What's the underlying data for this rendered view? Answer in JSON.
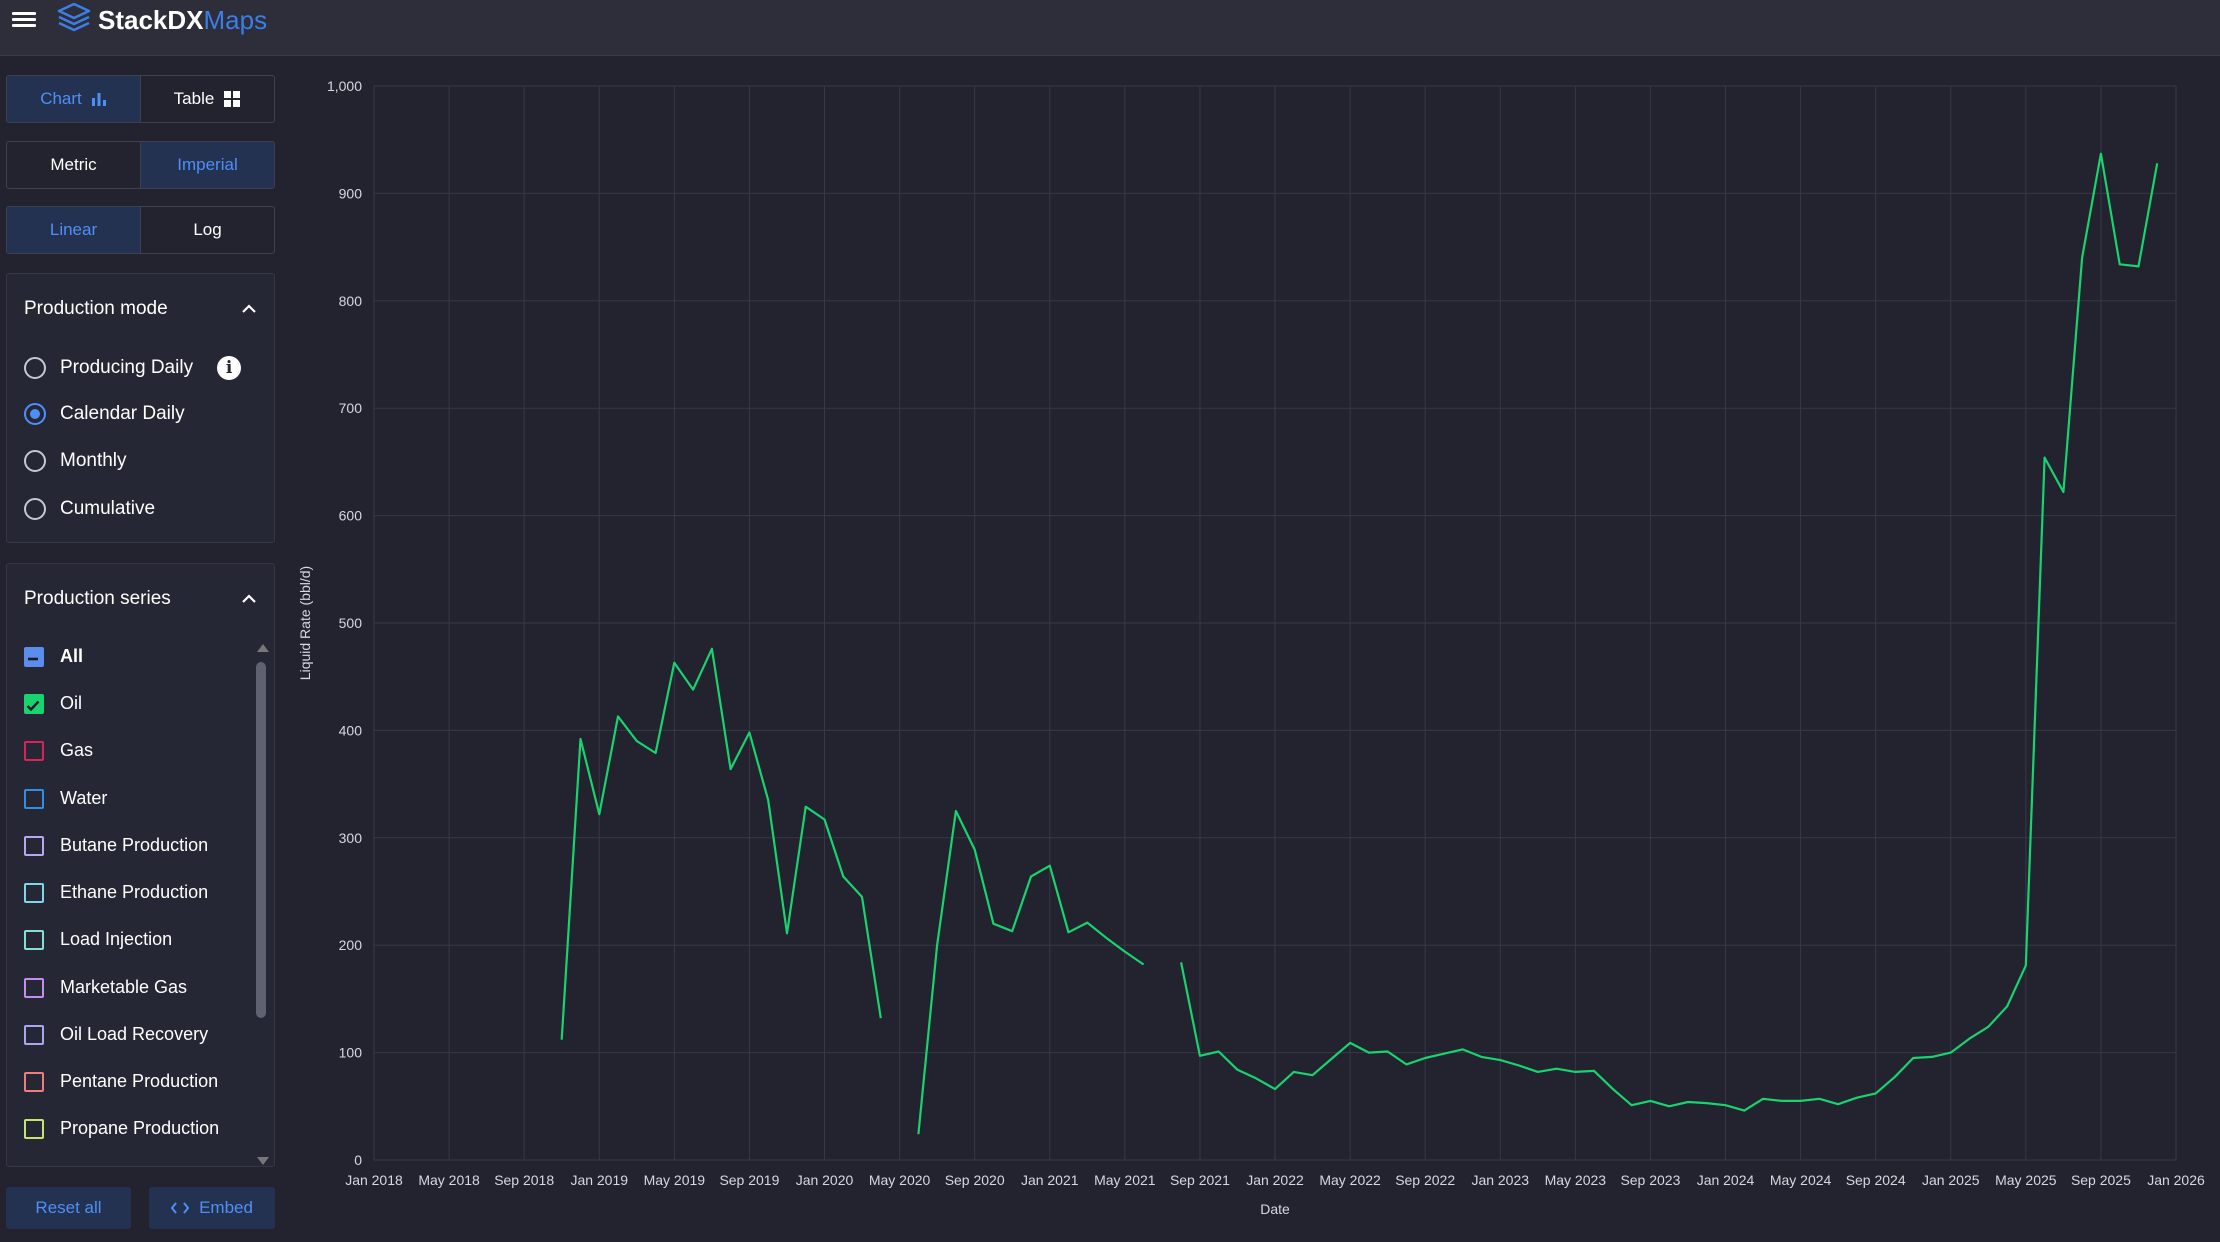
{
  "header": {
    "brand_main": "StackDX",
    "brand_sub": "Maps"
  },
  "view_toggle": {
    "chart_label": "Chart",
    "table_label": "Table",
    "selected": "Chart"
  },
  "unit_toggle": {
    "metric_label": "Metric",
    "imperial_label": "Imperial",
    "selected": "Imperial"
  },
  "scale_toggle": {
    "linear_label": "Linear",
    "log_label": "Log",
    "selected": "Linear"
  },
  "production_mode": {
    "title": "Production mode",
    "options": [
      {
        "label": "Producing Daily",
        "checked": false
      },
      {
        "label": "Calendar Daily",
        "checked": true
      },
      {
        "label": "Monthly",
        "checked": false
      },
      {
        "label": "Cumulative",
        "checked": false
      }
    ]
  },
  "production_series": {
    "title": "Production series",
    "items": [
      {
        "label": "All",
        "state": "indeterminate",
        "color": "#5b8def"
      },
      {
        "label": "Oil",
        "state": "checked",
        "color": "#18d36f"
      },
      {
        "label": "Gas",
        "state": "unchecked",
        "color": "#d8245a"
      },
      {
        "label": "Water",
        "state": "unchecked",
        "color": "#2f8fe0"
      },
      {
        "label": "Butane Production",
        "state": "unchecked",
        "color": "#b4a8f2"
      },
      {
        "label": "Ethane Production",
        "state": "unchecked",
        "color": "#7dd7e8"
      },
      {
        "label": "Load Injection",
        "state": "unchecked",
        "color": "#84e0d6"
      },
      {
        "label": "Marketable Gas",
        "state": "unchecked",
        "color": "#c48ef0"
      },
      {
        "label": "Oil Load Recovery",
        "state": "unchecked",
        "color": "#a8a8f0"
      },
      {
        "label": "Pentane Production",
        "state": "unchecked",
        "color": "#f07c7c"
      },
      {
        "label": "Propane Production",
        "state": "unchecked",
        "color": "#c4e66e"
      }
    ]
  },
  "footer": {
    "reset_label": "Reset all",
    "embed_label": "Embed"
  },
  "chart_data": {
    "type": "line",
    "title": "",
    "xlabel": "Date",
    "ylabel": "Liquid Rate (bbl/d)",
    "ylim": [
      0,
      1000
    ],
    "xlim": [
      "2018-01",
      "2026-01"
    ],
    "yticks": [
      "0",
      "100",
      "200",
      "300",
      "400",
      "500",
      "600",
      "700",
      "800",
      "900",
      "1,000"
    ],
    "xticks": [
      "Jan 2018",
      "May 2018",
      "Sep 2018",
      "Jan 2019",
      "May 2019",
      "Sep 2019",
      "Jan 2020",
      "May 2020",
      "Sep 2020",
      "Jan 2021",
      "May 2021",
      "Sep 2021",
      "Jan 2022",
      "May 2022",
      "Sep 2022",
      "Jan 2023",
      "May 2023",
      "Sep 2023",
      "Jan 2024",
      "May 2024",
      "Sep 2024",
      "Jan 2025",
      "May 2025",
      "Sep 2025",
      "Jan 2026"
    ],
    "grid": true,
    "series": [
      {
        "name": "Oil",
        "color": "#18d36f",
        "points": [
          [
            "2018-11",
            112
          ],
          [
            "2018-12",
            392
          ],
          [
            "2019-01",
            322
          ],
          [
            "2019-02",
            413
          ],
          [
            "2019-03",
            390
          ],
          [
            "2019-04",
            379
          ],
          [
            "2019-05",
            463
          ],
          [
            "2019-06",
            438
          ],
          [
            "2019-07",
            476
          ],
          [
            "2019-08",
            364
          ],
          [
            "2019-09",
            398
          ],
          [
            "2019-10",
            335
          ],
          [
            "2019-11",
            211
          ],
          [
            "2019-12",
            329
          ],
          [
            "2020-01",
            317
          ],
          [
            "2020-02",
            264
          ],
          [
            "2020-03",
            245
          ],
          [
            "2020-04",
            132
          ],
          null,
          [
            "2020-06",
            24
          ],
          [
            "2020-07",
            200
          ],
          [
            "2020-08",
            325
          ],
          [
            "2020-09",
            289
          ],
          [
            "2020-10",
            220
          ],
          [
            "2020-11",
            213
          ],
          [
            "2020-12",
            264
          ],
          [
            "2021-01",
            274
          ],
          [
            "2021-02",
            212
          ],
          [
            "2021-03",
            221
          ],
          [
            "2021-04",
            207
          ],
          [
            "2021-05",
            194
          ],
          [
            "2021-06",
            182
          ],
          null,
          [
            "2021-08",
            184
          ],
          [
            "2021-09",
            97
          ],
          [
            "2021-10",
            101
          ],
          [
            "2021-11",
            84
          ],
          [
            "2021-12",
            76
          ],
          [
            "2022-01",
            66
          ],
          [
            "2022-02",
            82
          ],
          [
            "2022-03",
            79
          ],
          [
            "2022-04",
            94
          ],
          [
            "2022-05",
            109
          ],
          [
            "2022-06",
            100
          ],
          [
            "2022-07",
            101
          ],
          [
            "2022-08",
            89
          ],
          [
            "2022-09",
            95
          ],
          [
            "2022-10",
            99
          ],
          [
            "2022-11",
            103
          ],
          [
            "2022-12",
            96
          ],
          [
            "2023-01",
            93
          ],
          [
            "2023-02",
            88
          ],
          [
            "2023-03",
            82
          ],
          [
            "2023-04",
            85
          ],
          [
            "2023-05",
            82
          ],
          [
            "2023-06",
            83
          ],
          [
            "2023-07",
            66
          ],
          [
            "2023-08",
            51
          ],
          [
            "2023-09",
            55
          ],
          [
            "2023-10",
            50
          ],
          [
            "2023-11",
            54
          ],
          [
            "2023-12",
            53
          ],
          [
            "2024-01",
            51
          ],
          [
            "2024-02",
            46
          ],
          [
            "2024-03",
            57
          ],
          [
            "2024-04",
            55
          ],
          [
            "2024-05",
            55
          ],
          [
            "2024-06",
            57
          ],
          [
            "2024-07",
            52
          ],
          [
            "2024-08",
            58
          ],
          [
            "2024-09",
            62
          ],
          [
            "2024-10",
            77
          ],
          [
            "2024-11",
            95
          ],
          [
            "2024-12",
            96
          ],
          [
            "2025-01",
            100
          ],
          [
            "2025-02",
            113
          ],
          [
            "2025-03",
            124
          ],
          [
            "2025-04",
            143
          ],
          [
            "2025-05",
            181
          ],
          [
            "2025-06",
            654
          ],
          [
            "2025-07",
            622
          ],
          [
            "2025-08",
            840
          ],
          [
            "2025-09",
            937
          ],
          [
            "2025-10",
            834
          ],
          [
            "2025-11",
            832
          ],
          [
            "2025-12",
            928
          ]
        ]
      }
    ]
  }
}
